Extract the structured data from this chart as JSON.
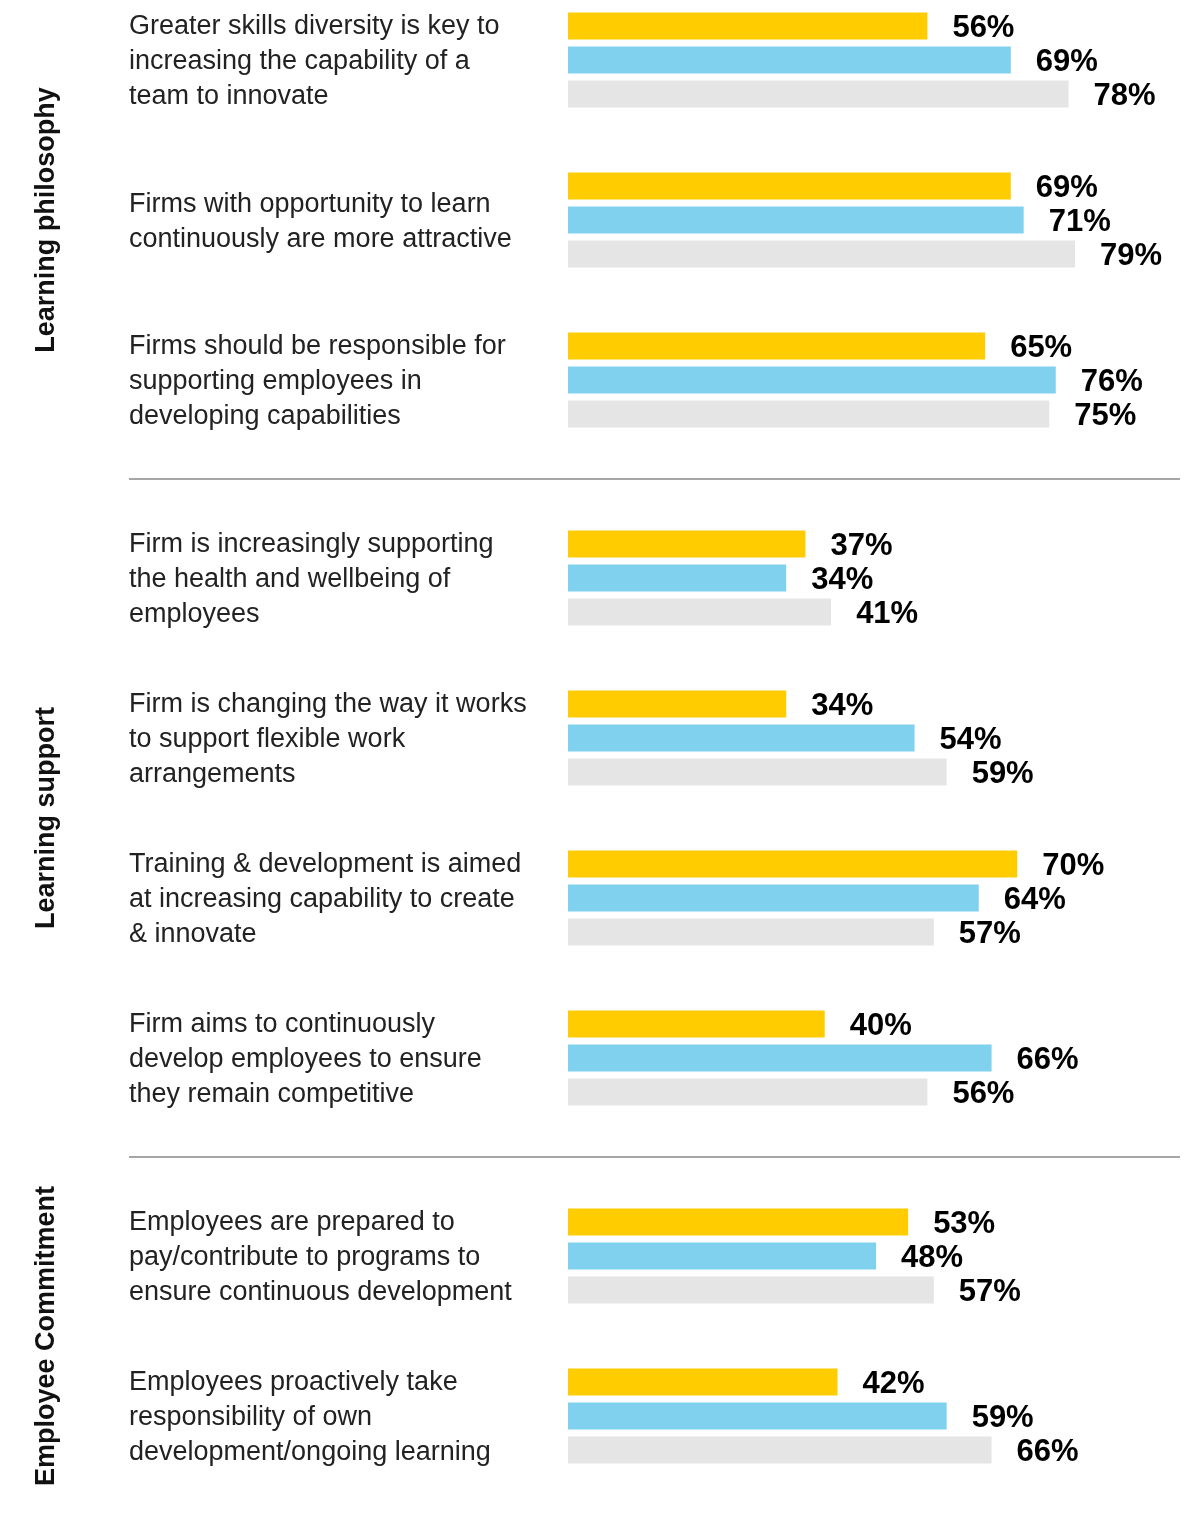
{
  "chart_data": {
    "type": "bar",
    "orientation": "horizontal",
    "categories": [
      "Greater skills diversity is key to increasing the capability of a team to innovate",
      "Firms with opportunity to learn continuously are more attractive",
      "Firms should be responsible for supporting employees in developing capabilities",
      "Firm is increasingly supporting the health and wellbeing of employees",
      "Firm is changing the way it works to support flexible work arrangements",
      "Training & development is aimed at increasing capability to create & innovate",
      "Firm aims to continuously develop employees to ensure they remain competitive",
      "Employees are prepared to pay/contribute to programs to ensure continuous development",
      "Employees proactively take responsibility of own development/ongoing learning"
    ],
    "series": [
      {
        "color": "#ffcc00",
        "values": [
          56,
          69,
          65,
          37,
          34,
          70,
          40,
          53,
          42
        ],
        "value_labels": [
          "56%",
          "69%",
          "65%",
          "37%",
          "34%",
          "70%",
          "40%",
          "53%",
          "42%"
        ]
      },
      {
        "color": "#7fd1ee",
        "values": [
          69,
          71,
          76,
          34,
          54,
          64,
          66,
          48,
          59
        ],
        "value_labels": [
          "69%",
          "71%",
          "76%",
          "34%",
          "54%",
          "64%",
          "66%",
          "48%",
          "59%"
        ]
      },
      {
        "color": "#e5e5e5",
        "values": [
          78,
          79,
          75,
          41,
          59,
          57,
          56,
          57,
          66
        ],
        "value_labels": [
          "78%",
          "79%",
          "75%",
          "41%",
          "59%",
          "57%",
          "56%",
          "57%",
          "66%"
        ]
      }
    ],
    "annotations": [
      "Learning philosophy",
      "Learning support",
      "Employee Commitment"
    ]
  }
}
